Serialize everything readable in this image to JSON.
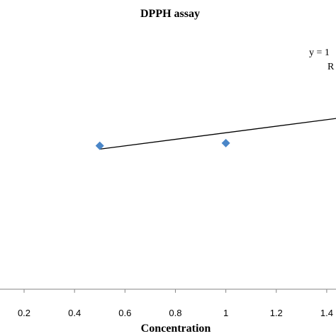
{
  "chart_data": {
    "type": "scatter",
    "title": "DPPH assay",
    "xlabel": "Concentration",
    "ylabel": "",
    "x_ticks": [
      "0.2",
      "0.4",
      "0.6",
      "0.8",
      "1",
      "1.2",
      "1.4"
    ],
    "xlim": [
      0.16,
      1.48
    ],
    "ylim": [
      0,
      1
    ],
    "grid": false,
    "series": [
      {
        "marker": "diamond",
        "color": "#4a86c8",
        "points": [
          {
            "x": 0.5,
            "y": 0.55
          },
          {
            "x": 1.0,
            "y": 0.56
          }
        ]
      }
    ],
    "trendline": {
      "color": "#000000",
      "x_start": 0.5,
      "y_start": 0.537,
      "x_end": 1.48,
      "y_end": 0.66
    },
    "annotations": [
      "y = 1",
      "R"
    ]
  }
}
